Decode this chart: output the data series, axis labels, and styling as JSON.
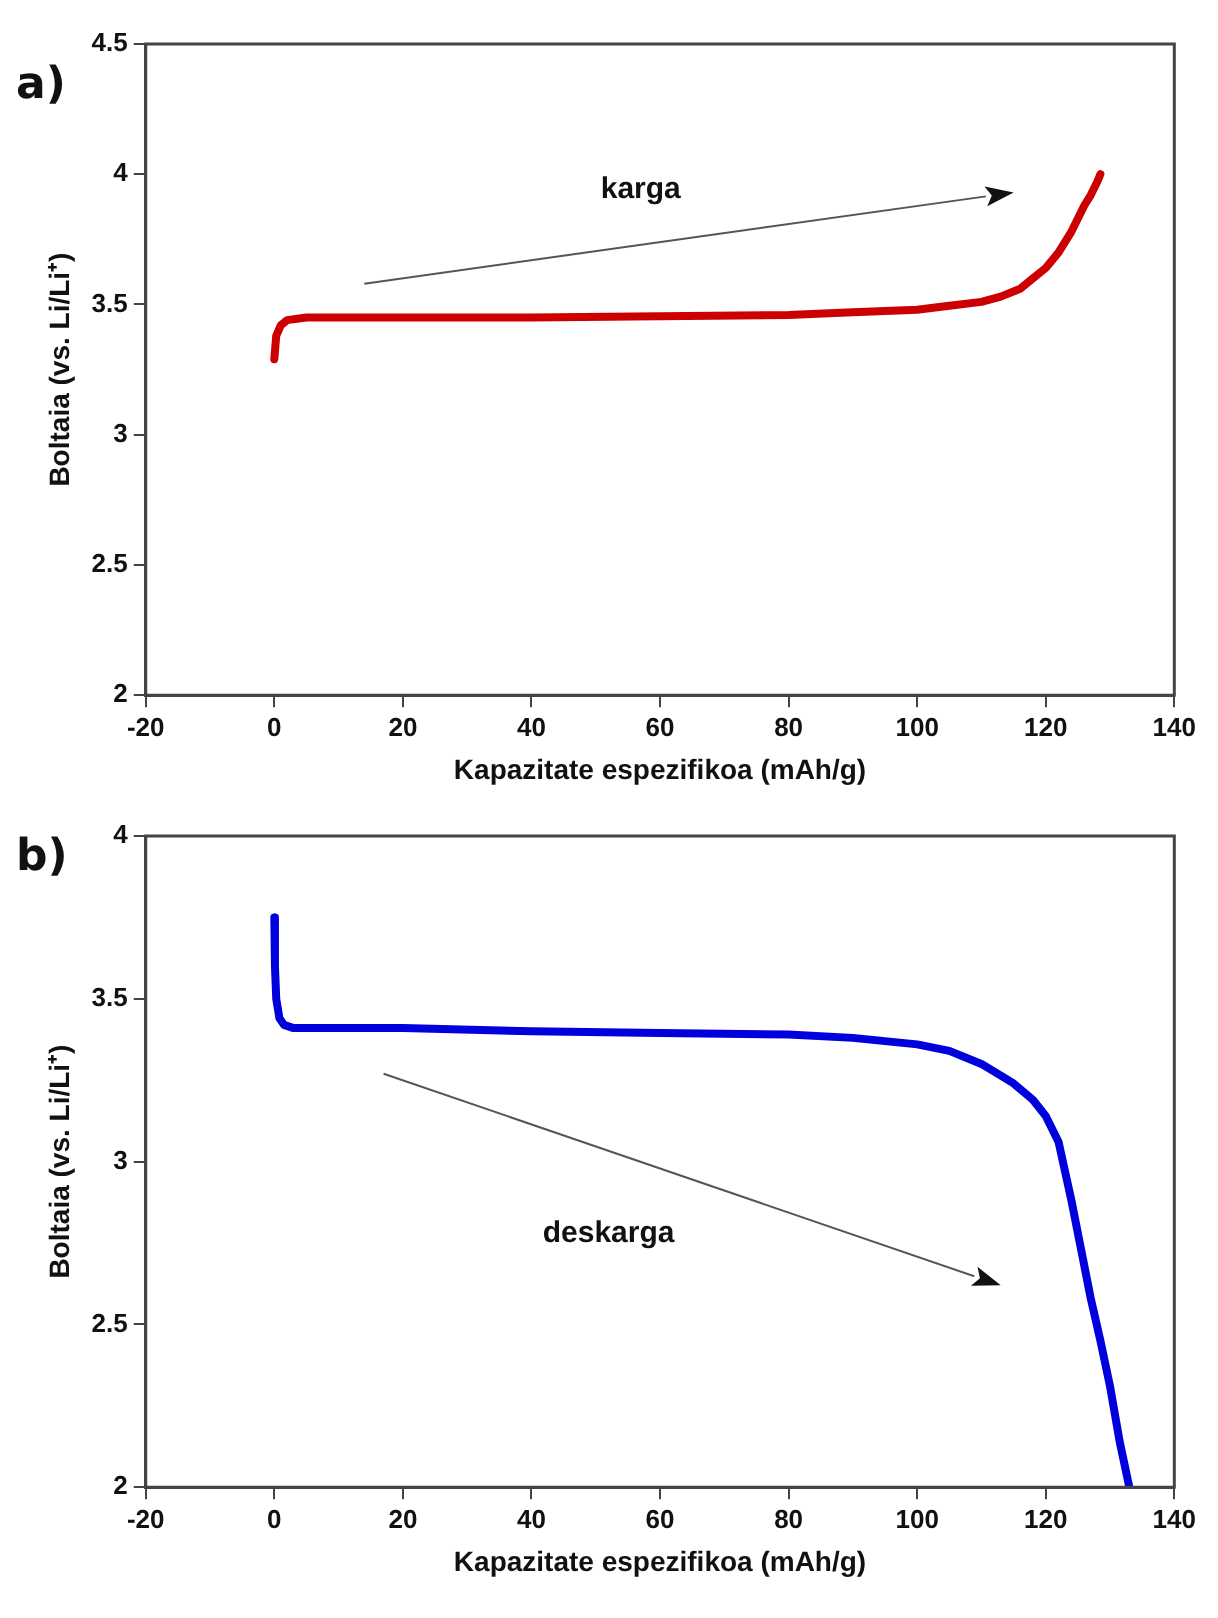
{
  "chart_data": [
    {
      "type": "line",
      "title": "a)",
      "xlabel": "Kapazitate espezifikoa (mAh/g)",
      "ylabel": "Boltaia (vs. Li/Li⁺)",
      "annotations": [
        "karga"
      ],
      "xlim": [
        -20,
        140
      ],
      "xticks": [
        -20,
        0,
        20,
        40,
        60,
        80,
        100,
        120,
        140
      ],
      "ylim": [
        2,
        4.5
      ],
      "yticks": [
        2,
        2.5,
        3,
        3.5,
        4,
        4.5
      ],
      "grid": false,
      "marker": "none",
      "series": [
        {
          "color": "#cc0000",
          "x": [
            0,
            0.3,
            1,
            2,
            5,
            10,
            20,
            40,
            60,
            80,
            90,
            100,
            105,
            110,
            113,
            116,
            118,
            120,
            122,
            124,
            125,
            126,
            127,
            128,
            128.5
          ],
          "values": [
            3.29,
            3.38,
            3.42,
            3.44,
            3.45,
            3.45,
            3.45,
            3.45,
            3.455,
            3.46,
            3.47,
            3.48,
            3.495,
            3.51,
            3.53,
            3.56,
            3.6,
            3.64,
            3.7,
            3.78,
            3.83,
            3.88,
            3.92,
            3.97,
            4.0
          ]
        }
      ]
    },
    {
      "type": "line",
      "title": "b)",
      "xlabel": "Kapazitate espezifikoa (mAh/g)",
      "ylabel": "Boltaia (vs. Li/Li⁺)",
      "annotations": [
        "deskarga"
      ],
      "xlim": [
        -20,
        140
      ],
      "xticks": [
        -20,
        0,
        20,
        40,
        60,
        80,
        100,
        120,
        140
      ],
      "ylim": [
        2,
        4
      ],
      "yticks": [
        2,
        2.5,
        3,
        3.5,
        4
      ],
      "grid": false,
      "marker": "none",
      "series": [
        {
          "color": "#0000dd",
          "x": [
            0,
            0.1,
            0.3,
            0.8,
            1.5,
            3,
            10,
            20,
            40,
            60,
            80,
            90,
            100,
            105,
            110,
            115,
            118,
            120,
            122,
            123,
            124,
            125,
            126,
            127,
            128.5,
            130,
            131.5,
            133
          ],
          "values": [
            3.75,
            3.6,
            3.5,
            3.44,
            3.42,
            3.41,
            3.41,
            3.41,
            3.4,
            3.395,
            3.39,
            3.38,
            3.36,
            3.34,
            3.3,
            3.24,
            3.19,
            3.14,
            3.06,
            2.97,
            2.88,
            2.78,
            2.68,
            2.58,
            2.45,
            2.31,
            2.14,
            2.0
          ]
        }
      ]
    }
  ]
}
